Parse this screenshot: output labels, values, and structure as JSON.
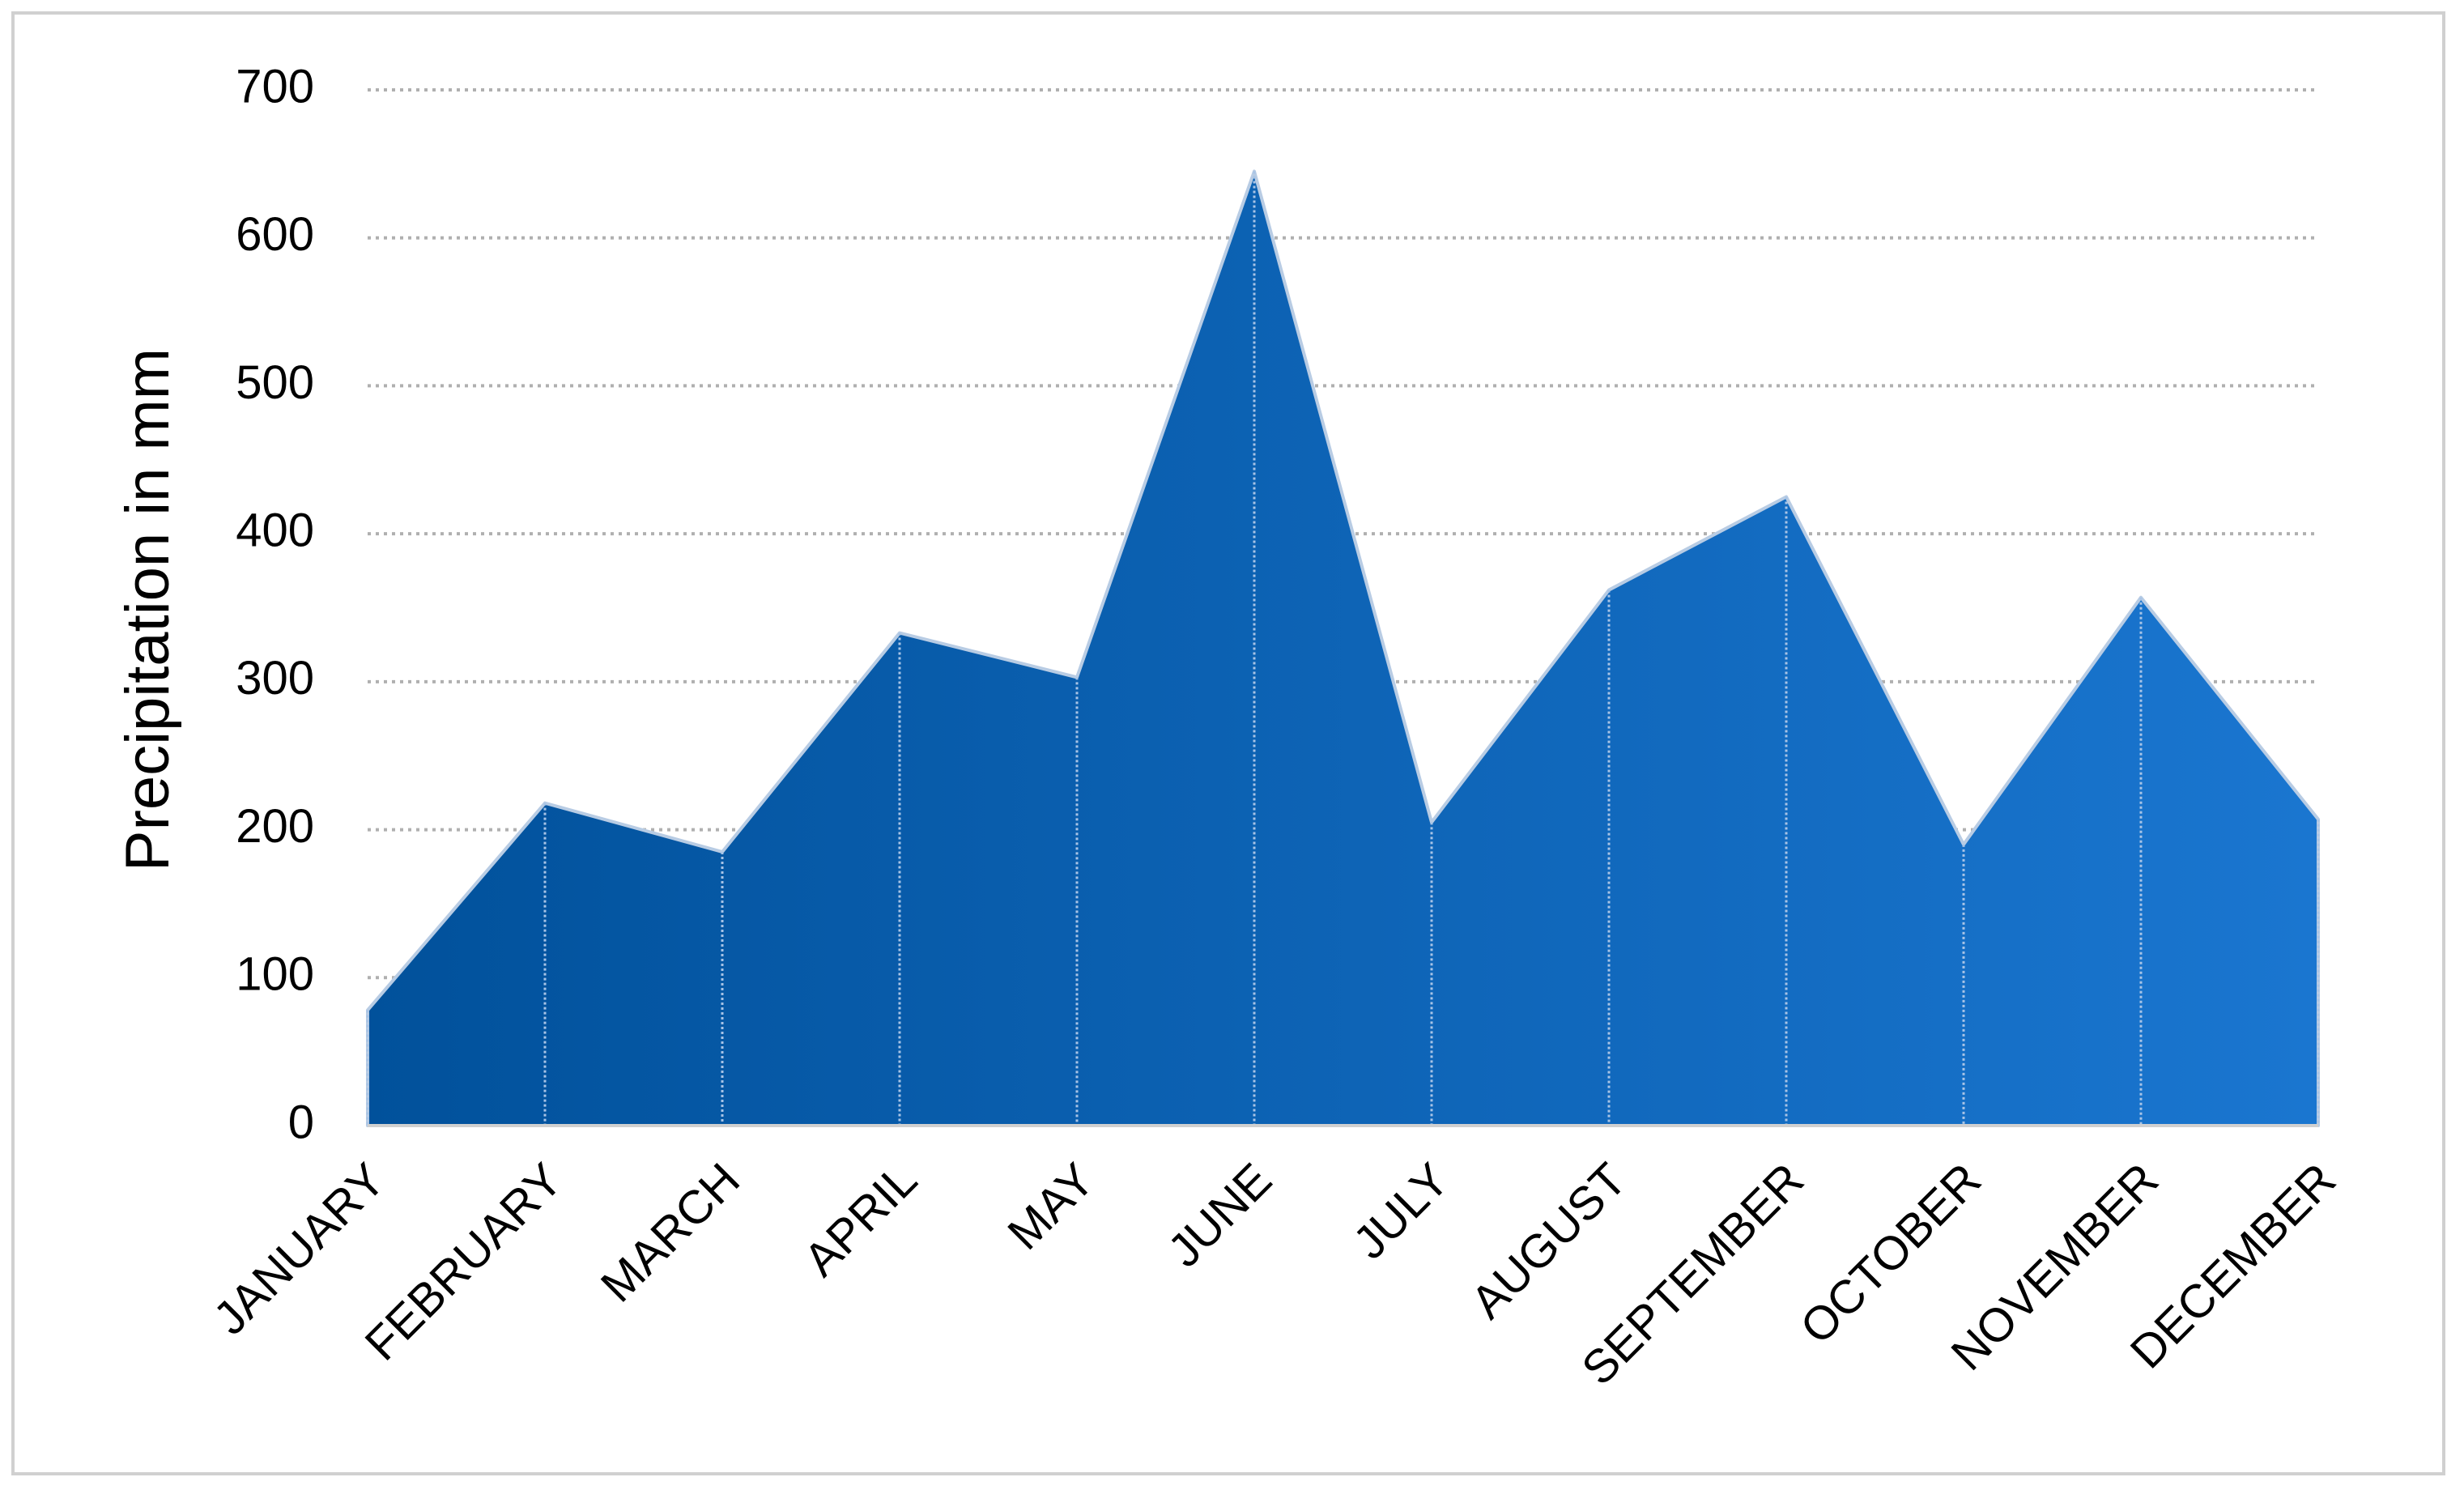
{
  "chart_data": {
    "type": "area",
    "y_label": "Precipitation in mm",
    "categories": [
      "JANUARY",
      "FEBRUARY",
      "MARCH",
      "APRIL",
      "MAY",
      "JUNE",
      "JULY",
      "AUGUST",
      "SEPTEMBER",
      "OCTOBER",
      "NOVEMBER",
      "DECEMBER"
    ],
    "values": [
      78,
      218,
      185,
      333,
      303,
      645,
      205,
      362,
      425,
      190,
      357,
      207
    ],
    "gradient": [
      "#01519b",
      "#1a76d0"
    ],
    "ylim": [
      0,
      700
    ],
    "yticks": [
      0,
      100,
      200,
      300,
      400,
      500,
      600,
      700
    ],
    "grid": true
  }
}
